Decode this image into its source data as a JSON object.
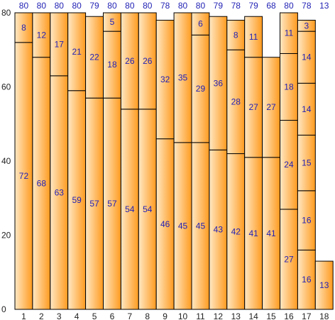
{
  "chart_data": {
    "type": "bar",
    "stacked": true,
    "categories": [
      "1",
      "2",
      "3",
      "4",
      "5",
      "6",
      "7",
      "8",
      "9",
      "10",
      "11",
      "12",
      "13",
      "14",
      "15",
      "16",
      "17",
      "18"
    ],
    "segments": [
      [
        72,
        8
      ],
      [
        68,
        12
      ],
      [
        63,
        17
      ],
      [
        59,
        21
      ],
      [
        57,
        22
      ],
      [
        57,
        18,
        5
      ],
      [
        54,
        26
      ],
      [
        54,
        26
      ],
      [
        46,
        32
      ],
      [
        45,
        35
      ],
      [
        45,
        29,
        6
      ],
      [
        43,
        36
      ],
      [
        42,
        28,
        8
      ],
      [
        41,
        27,
        11
      ],
      [
        41,
        27
      ],
      [
        27,
        24,
        18,
        11
      ],
      [
        16,
        16,
        15,
        14,
        14,
        3
      ],
      [
        13
      ]
    ],
    "totals": [
      80,
      80,
      80,
      80,
      79,
      80,
      80,
      80,
      78,
      80,
      80,
      79,
      78,
      79,
      68,
      80,
      78,
      13
    ],
    "ylim": [
      0,
      80
    ],
    "yticks": [
      "0",
      "20",
      "40",
      "60",
      "80"
    ],
    "grid": false,
    "colors": {
      "bar_light": "#ffe8c4",
      "bar_dark": "#ff9a1e",
      "label": "#1f1fb4",
      "stroke": "#000000"
    }
  }
}
